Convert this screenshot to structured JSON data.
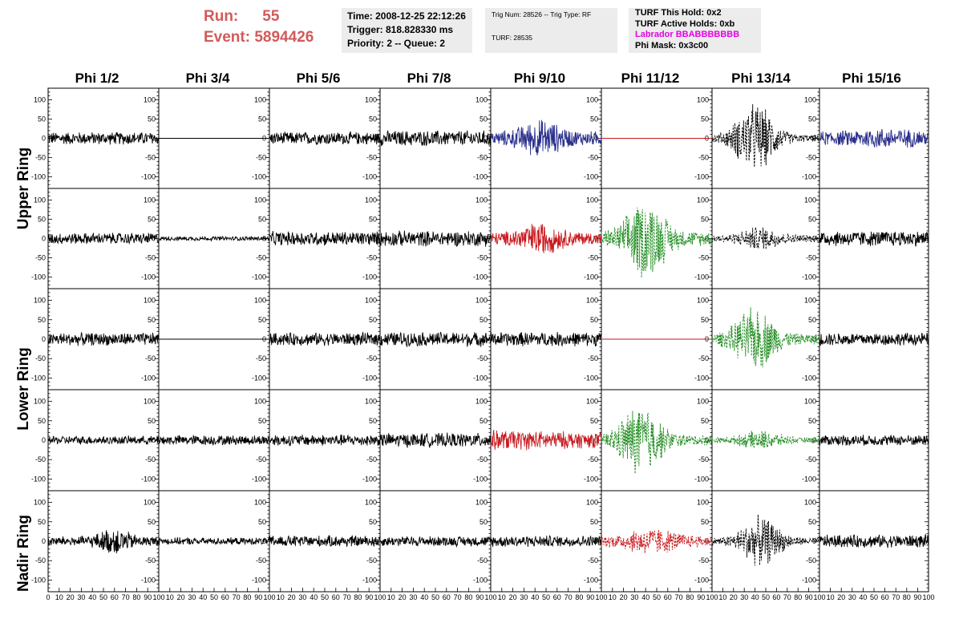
{
  "run_info": {
    "run_label": "Run:",
    "run_value": "55",
    "event_label": "Event:",
    "event_value": "5894426"
  },
  "info_box_time": {
    "time": "Time: 2008-12-25 22:12:26",
    "trigger": "Trigger: 818.828330 ms",
    "priority": "Priority: 2 -- Queue: 2"
  },
  "info_box_trig": {
    "trig": "Trig Num: 28526 -- Trig Type: RF",
    "turf": "TURF: 28535"
  },
  "info_box_turf": {
    "this_hold": "TURF This Hold: 0x2",
    "active_holds": "TURF Active Holds: 0xb",
    "labrador": "Labrador BBABBBBBBB",
    "phi_mask": "Phi Mask: 0x3c00"
  },
  "phi_sectors": [
    "Phi 1/2",
    "Phi 3/4",
    "Phi 5/6",
    "Phi 7/8",
    "Phi 9/10",
    "Phi 11/12",
    "Phi 13/14",
    "Phi 15/16"
  ],
  "ring_labels": [
    "Upper Ring",
    "Lower Ring",
    "Nadir Ring"
  ],
  "chart_data": {
    "type": "line",
    "xlim": [
      0,
      100
    ],
    "ylim": [
      -130,
      130
    ],
    "x_ticks": [
      0,
      10,
      20,
      30,
      40,
      50,
      60,
      70,
      80,
      90,
      100
    ],
    "x_tick_labels": [
      "0",
      "10",
      "20",
      "30",
      "40",
      "50",
      "60",
      "70",
      "80",
      "90",
      "100"
    ],
    "y_ticks": [
      100,
      50,
      0,
      -50,
      -100
    ],
    "y_tick_labels": [
      "100",
      "50",
      "0",
      "-50",
      "-100"
    ],
    "colors": {
      "normal": "#000000",
      "blue": "#2a2f8c",
      "red": "#c8191e",
      "green": "#1f8c1f"
    },
    "panels": [
      {
        "row": 0,
        "col": 0,
        "color": "black",
        "style": "solid",
        "amp": 18,
        "env": [
          0,
          100,
          0
        ],
        "flat": false
      },
      {
        "row": 0,
        "col": 1,
        "color": "black",
        "style": "solid",
        "amp": 0,
        "env": [
          0,
          100,
          0
        ],
        "flat": true
      },
      {
        "row": 0,
        "col": 2,
        "color": "black",
        "style": "solid",
        "amp": 18,
        "env": [
          0,
          100,
          0
        ],
        "flat": false
      },
      {
        "row": 0,
        "col": 3,
        "color": "black",
        "style": "solid",
        "amp": 22,
        "env": [
          0,
          100,
          0
        ],
        "flat": false
      },
      {
        "row": 0,
        "col": 4,
        "color": "blue",
        "style": "solid",
        "amp": 20,
        "env": [
          45,
          20,
          35
        ],
        "flat": false
      },
      {
        "row": 0,
        "col": 5,
        "color": "red",
        "style": "solid",
        "amp": 0,
        "env": [
          0,
          100,
          0
        ],
        "flat": true
      },
      {
        "row": 0,
        "col": 6,
        "color": "black",
        "style": "dashed",
        "amp": 10,
        "env": [
          40,
          20,
          90
        ],
        "flat": false
      },
      {
        "row": 0,
        "col": 7,
        "color": "blue",
        "style": "solid",
        "amp": 20,
        "env": [
          60,
          30,
          10
        ],
        "flat": false
      },
      {
        "row": 1,
        "col": 0,
        "color": "black",
        "style": "solid",
        "amp": 16,
        "env": [
          0,
          100,
          0
        ],
        "flat": false
      },
      {
        "row": 1,
        "col": 1,
        "color": "black",
        "style": "solid",
        "amp": 6,
        "env": [
          0,
          100,
          0
        ],
        "flat": false
      },
      {
        "row": 1,
        "col": 2,
        "color": "black",
        "style": "solid",
        "amp": 20,
        "env": [
          0,
          100,
          0
        ],
        "flat": false
      },
      {
        "row": 1,
        "col": 3,
        "color": "black",
        "style": "solid",
        "amp": 22,
        "env": [
          0,
          100,
          0
        ],
        "flat": false
      },
      {
        "row": 1,
        "col": 4,
        "color": "red",
        "style": "solid",
        "amp": 18,
        "env": [
          45,
          20,
          30
        ],
        "flat": false
      },
      {
        "row": 1,
        "col": 5,
        "color": "green",
        "style": "dashed",
        "amp": 20,
        "env": [
          40,
          20,
          95
        ],
        "flat": false
      },
      {
        "row": 1,
        "col": 6,
        "color": "black",
        "style": "dashed",
        "amp": 10,
        "env": [
          45,
          20,
          25
        ],
        "flat": false
      },
      {
        "row": 1,
        "col": 7,
        "color": "black",
        "style": "solid",
        "amp": 22,
        "env": [
          0,
          100,
          0
        ],
        "flat": false
      },
      {
        "row": 2,
        "col": 0,
        "color": "black",
        "style": "solid",
        "amp": 18,
        "env": [
          0,
          100,
          0
        ],
        "flat": false
      },
      {
        "row": 2,
        "col": 1,
        "color": "black",
        "style": "solid",
        "amp": 0,
        "env": [
          0,
          100,
          0
        ],
        "flat": true
      },
      {
        "row": 2,
        "col": 2,
        "color": "black",
        "style": "solid",
        "amp": 18,
        "env": [
          0,
          100,
          0
        ],
        "flat": false
      },
      {
        "row": 2,
        "col": 3,
        "color": "black",
        "style": "solid",
        "amp": 20,
        "env": [
          0,
          100,
          0
        ],
        "flat": false
      },
      {
        "row": 2,
        "col": 4,
        "color": "black",
        "style": "solid",
        "amp": 20,
        "env": [
          0,
          100,
          0
        ],
        "flat": false
      },
      {
        "row": 2,
        "col": 5,
        "color": "red",
        "style": "solid",
        "amp": 0,
        "env": [
          0,
          100,
          0
        ],
        "flat": true
      },
      {
        "row": 2,
        "col": 6,
        "color": "green",
        "style": "dashed",
        "amp": 15,
        "env": [
          40,
          20,
          75
        ],
        "flat": false
      },
      {
        "row": 2,
        "col": 7,
        "color": "black",
        "style": "solid",
        "amp": 18,
        "env": [
          0,
          100,
          0
        ],
        "flat": false
      },
      {
        "row": 3,
        "col": 0,
        "color": "black",
        "style": "solid",
        "amp": 12,
        "env": [
          0,
          100,
          0
        ],
        "flat": false
      },
      {
        "row": 3,
        "col": 1,
        "color": "black",
        "style": "solid",
        "amp": 14,
        "env": [
          0,
          100,
          0
        ],
        "flat": false
      },
      {
        "row": 3,
        "col": 2,
        "color": "black",
        "style": "solid",
        "amp": 16,
        "env": [
          0,
          100,
          0
        ],
        "flat": false
      },
      {
        "row": 3,
        "col": 3,
        "color": "black",
        "style": "solid",
        "amp": 20,
        "env": [
          0,
          100,
          0
        ],
        "flat": false
      },
      {
        "row": 3,
        "col": 4,
        "color": "red",
        "style": "solid",
        "amp": 18,
        "env": [
          0,
          100,
          10
        ],
        "flat": false
      },
      {
        "row": 3,
        "col": 5,
        "color": "green",
        "style": "dashed",
        "amp": 15,
        "env": [
          35,
          20,
          90
        ],
        "flat": false
      },
      {
        "row": 3,
        "col": 6,
        "color": "green",
        "style": "dashed",
        "amp": 8,
        "env": [
          45,
          20,
          20
        ],
        "flat": false
      },
      {
        "row": 3,
        "col": 7,
        "color": "black",
        "style": "solid",
        "amp": 15,
        "env": [
          0,
          100,
          0
        ],
        "flat": false
      },
      {
        "row": 4,
        "col": 0,
        "color": "black",
        "style": "solid",
        "amp": 14,
        "env": [
          60,
          15,
          25
        ],
        "flat": false
      },
      {
        "row": 4,
        "col": 1,
        "color": "black",
        "style": "solid",
        "amp": 10,
        "env": [
          0,
          100,
          0
        ],
        "flat": false
      },
      {
        "row": 4,
        "col": 2,
        "color": "black",
        "style": "solid",
        "amp": 16,
        "env": [
          0,
          100,
          0
        ],
        "flat": false
      },
      {
        "row": 4,
        "col": 3,
        "color": "black",
        "style": "solid",
        "amp": 14,
        "env": [
          0,
          100,
          0
        ],
        "flat": false
      },
      {
        "row": 4,
        "col": 4,
        "color": "black",
        "style": "solid",
        "amp": 16,
        "env": [
          0,
          100,
          0
        ],
        "flat": false
      },
      {
        "row": 4,
        "col": 5,
        "color": "red",
        "style": "dashed",
        "amp": 15,
        "env": [
          45,
          25,
          25
        ],
        "flat": false
      },
      {
        "row": 4,
        "col": 6,
        "color": "black",
        "style": "dashed",
        "amp": 10,
        "env": [
          45,
          20,
          60
        ],
        "flat": false
      },
      {
        "row": 4,
        "col": 7,
        "color": "black",
        "style": "solid",
        "amp": 18,
        "env": [
          0,
          100,
          0
        ],
        "flat": false
      }
    ]
  }
}
